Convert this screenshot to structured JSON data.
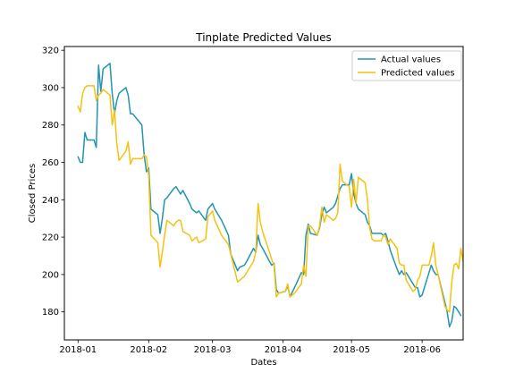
{
  "chart_data": {
    "type": "line",
    "title": "Tinplate Predicted Values",
    "xlabel": "Dates",
    "ylabel": "Closed Prices",
    "xlim": [
      "2017-12-26",
      "2018-06-19"
    ],
    "ylim": [
      165,
      322
    ],
    "x_ticks": [
      {
        "date": "2018-01-01",
        "label": "2018-01"
      },
      {
        "date": "2018-02-01",
        "label": "2018-02"
      },
      {
        "date": "2018-03-01",
        "label": "2018-03"
      },
      {
        "date": "2018-04-01",
        "label": "2018-04"
      },
      {
        "date": "2018-05-01",
        "label": "2018-05"
      },
      {
        "date": "2018-06-01",
        "label": "2018-06"
      }
    ],
    "y_ticks": [
      180,
      200,
      220,
      240,
      260,
      280,
      300,
      320
    ],
    "grid": false,
    "legend": "top-right",
    "colors": {
      "actual": "#2394b0",
      "predicted": "#f5c211",
      "axis": "#000000"
    },
    "series": [
      {
        "name": "Actual values",
        "key": "actual",
        "points": [
          [
            "2018-01-01",
            263
          ],
          [
            "2018-01-02",
            260
          ],
          [
            "2018-01-03",
            260
          ],
          [
            "2018-01-04",
            276
          ],
          [
            "2018-01-05",
            272
          ],
          [
            "2018-01-08",
            272
          ],
          [
            "2018-01-09",
            268
          ],
          [
            "2018-01-10",
            312
          ],
          [
            "2018-01-11",
            298
          ],
          [
            "2018-01-12",
            310
          ],
          [
            "2018-01-15",
            313
          ],
          [
            "2018-01-16",
            297
          ],
          [
            "2018-01-17",
            286
          ],
          [
            "2018-01-18",
            293
          ],
          [
            "2018-01-19",
            297
          ],
          [
            "2018-01-22",
            300
          ],
          [
            "2018-01-23",
            296
          ],
          [
            "2018-01-24",
            286
          ],
          [
            "2018-01-25",
            286
          ],
          [
            "2018-01-29",
            280
          ],
          [
            "2018-01-30",
            264
          ],
          [
            "2018-01-31",
            255
          ],
          [
            "2018-02-01",
            257
          ],
          [
            "2018-02-02",
            235
          ],
          [
            "2018-02-05",
            232
          ],
          [
            "2018-02-06",
            222
          ],
          [
            "2018-02-07",
            230
          ],
          [
            "2018-02-08",
            240
          ],
          [
            "2018-02-09",
            241
          ],
          [
            "2018-02-12",
            246
          ],
          [
            "2018-02-13",
            247
          ],
          [
            "2018-02-14",
            245
          ],
          [
            "2018-02-15",
            243
          ],
          [
            "2018-02-16",
            245
          ],
          [
            "2018-02-19",
            238
          ],
          [
            "2018-02-20",
            235
          ],
          [
            "2018-02-22",
            233
          ],
          [
            "2018-02-23",
            234
          ],
          [
            "2018-02-26",
            229
          ],
          [
            "2018-02-27",
            235
          ],
          [
            "2018-03-01",
            238
          ],
          [
            "2018-03-02",
            235
          ],
          [
            "2018-03-05",
            229
          ],
          [
            "2018-03-08",
            221
          ],
          [
            "2018-03-09",
            211
          ],
          [
            "2018-03-12",
            202
          ],
          [
            "2018-03-13",
            204
          ],
          [
            "2018-03-15",
            205
          ],
          [
            "2018-03-16",
            207
          ],
          [
            "2018-03-19",
            214
          ],
          [
            "2018-03-20",
            212
          ],
          [
            "2018-03-21",
            221
          ],
          [
            "2018-03-22",
            216
          ],
          [
            "2018-03-23",
            214
          ],
          [
            "2018-03-26",
            207
          ],
          [
            "2018-03-27",
            205
          ],
          [
            "2018-03-28",
            206
          ],
          [
            "2018-03-29",
            192
          ],
          [
            "2018-03-30",
            190
          ],
          [
            "2018-04-02",
            191
          ],
          [
            "2018-04-03",
            194
          ],
          [
            "2018-04-04",
            188
          ],
          [
            "2018-04-06",
            193
          ],
          [
            "2018-04-09",
            201
          ],
          [
            "2018-04-10",
            200
          ],
          [
            "2018-04-11",
            221
          ],
          [
            "2018-04-12",
            227
          ],
          [
            "2018-04-13",
            222
          ],
          [
            "2018-04-16",
            221
          ],
          [
            "2018-04-17",
            225
          ],
          [
            "2018-04-18",
            232
          ],
          [
            "2018-04-19",
            236
          ],
          [
            "2018-04-20",
            233
          ],
          [
            "2018-04-23",
            236
          ],
          [
            "2018-04-24",
            238
          ],
          [
            "2018-04-25",
            242
          ],
          [
            "2018-04-26",
            246
          ],
          [
            "2018-04-27",
            248
          ],
          [
            "2018-04-30",
            248
          ],
          [
            "2018-05-01",
            254
          ],
          [
            "2018-05-02",
            243
          ],
          [
            "2018-05-03",
            238
          ],
          [
            "2018-05-04",
            235
          ],
          [
            "2018-05-07",
            232
          ],
          [
            "2018-05-08",
            228
          ],
          [
            "2018-05-09",
            226
          ],
          [
            "2018-05-10",
            222
          ],
          [
            "2018-05-11",
            222
          ],
          [
            "2018-05-14",
            222
          ],
          [
            "2018-05-15",
            221
          ],
          [
            "2018-05-16",
            222
          ],
          [
            "2018-05-17",
            218
          ],
          [
            "2018-05-18",
            213
          ],
          [
            "2018-05-21",
            203
          ],
          [
            "2018-05-22",
            200
          ],
          [
            "2018-05-23",
            202
          ],
          [
            "2018-05-24",
            200
          ],
          [
            "2018-05-25",
            201
          ],
          [
            "2018-05-28",
            195
          ],
          [
            "2018-05-29",
            193
          ],
          [
            "2018-05-30",
            193
          ],
          [
            "2018-05-31",
            188
          ],
          [
            "2018-06-01",
            189
          ],
          [
            "2018-06-04",
            201
          ],
          [
            "2018-06-05",
            205
          ],
          [
            "2018-06-06",
            202
          ],
          [
            "2018-06-07",
            200
          ],
          [
            "2018-06-08",
            200
          ],
          [
            "2018-06-11",
            185
          ],
          [
            "2018-06-12",
            180
          ],
          [
            "2018-06-13",
            172
          ],
          [
            "2018-06-14",
            175
          ],
          [
            "2018-06-15",
            183
          ],
          [
            "2018-06-16",
            182
          ],
          [
            "2018-06-17",
            180
          ],
          [
            "2018-06-18",
            178
          ]
        ]
      },
      {
        "name": "Predicted values",
        "key": "predicted",
        "points": [
          [
            "2018-01-01",
            290
          ],
          [
            "2018-01-02",
            287
          ],
          [
            "2018-01-03",
            297
          ],
          [
            "2018-01-04",
            300
          ],
          [
            "2018-01-05",
            301
          ],
          [
            "2018-01-08",
            301
          ],
          [
            "2018-01-09",
            293
          ],
          [
            "2018-01-10",
            296
          ],
          [
            "2018-01-11",
            297
          ],
          [
            "2018-01-12",
            299
          ],
          [
            "2018-01-15",
            296
          ],
          [
            "2018-01-16",
            280
          ],
          [
            "2018-01-17",
            288
          ],
          [
            "2018-01-18",
            270
          ],
          [
            "2018-01-19",
            261
          ],
          [
            "2018-01-22",
            266
          ],
          [
            "2018-01-23",
            271
          ],
          [
            "2018-01-24",
            259
          ],
          [
            "2018-01-25",
            262
          ],
          [
            "2018-01-29",
            262
          ],
          [
            "2018-01-30",
            264
          ],
          [
            "2018-01-31",
            263
          ],
          [
            "2018-02-01",
            253
          ],
          [
            "2018-02-02",
            221
          ],
          [
            "2018-02-05",
            217
          ],
          [
            "2018-02-06",
            204
          ],
          [
            "2018-02-07",
            212
          ],
          [
            "2018-02-08",
            221
          ],
          [
            "2018-02-09",
            229
          ],
          [
            "2018-02-12",
            226
          ],
          [
            "2018-02-13",
            228
          ],
          [
            "2018-02-14",
            229
          ],
          [
            "2018-02-15",
            229
          ],
          [
            "2018-02-16",
            223
          ],
          [
            "2018-02-19",
            221
          ],
          [
            "2018-02-20",
            218
          ],
          [
            "2018-02-22",
            220
          ],
          [
            "2018-02-23",
            217
          ],
          [
            "2018-02-26",
            219
          ],
          [
            "2018-02-27",
            231
          ],
          [
            "2018-03-01",
            234
          ],
          [
            "2018-03-02",
            229
          ],
          [
            "2018-03-05",
            221
          ],
          [
            "2018-03-08",
            216
          ],
          [
            "2018-03-09",
            211
          ],
          [
            "2018-03-12",
            196
          ],
          [
            "2018-03-13",
            197
          ],
          [
            "2018-03-15",
            199
          ],
          [
            "2018-03-16",
            201
          ],
          [
            "2018-03-19",
            207
          ],
          [
            "2018-03-20",
            212
          ],
          [
            "2018-03-21",
            238
          ],
          [
            "2018-03-22",
            228
          ],
          [
            "2018-03-23",
            223
          ],
          [
            "2018-03-26",
            212
          ],
          [
            "2018-03-27",
            208
          ],
          [
            "2018-03-28",
            205
          ],
          [
            "2018-03-29",
            188
          ],
          [
            "2018-03-30",
            190
          ],
          [
            "2018-04-02",
            191
          ],
          [
            "2018-04-03",
            195
          ],
          [
            "2018-04-04",
            188
          ],
          [
            "2018-04-06",
            190
          ],
          [
            "2018-04-09",
            195
          ],
          [
            "2018-04-10",
            205
          ],
          [
            "2018-04-11",
            199
          ],
          [
            "2018-04-12",
            226
          ],
          [
            "2018-04-13",
            226
          ],
          [
            "2018-04-16",
            221
          ],
          [
            "2018-04-17",
            226
          ],
          [
            "2018-04-18",
            236
          ],
          [
            "2018-04-19",
            228
          ],
          [
            "2018-04-20",
            232
          ],
          [
            "2018-04-23",
            229
          ],
          [
            "2018-04-24",
            230
          ],
          [
            "2018-04-25",
            233
          ],
          [
            "2018-04-26",
            259
          ],
          [
            "2018-04-27",
            250
          ],
          [
            "2018-04-30",
            247
          ],
          [
            "2018-05-01",
            236
          ],
          [
            "2018-05-02",
            251
          ],
          [
            "2018-05-03",
            238
          ],
          [
            "2018-05-04",
            252
          ],
          [
            "2018-05-07",
            249
          ],
          [
            "2018-05-08",
            240
          ],
          [
            "2018-05-09",
            225
          ],
          [
            "2018-05-10",
            219
          ],
          [
            "2018-05-11",
            218
          ],
          [
            "2018-05-14",
            218
          ],
          [
            "2018-05-15",
            221
          ],
          [
            "2018-05-16",
            220
          ],
          [
            "2018-05-17",
            216
          ],
          [
            "2018-05-18",
            219
          ],
          [
            "2018-05-21",
            214
          ],
          [
            "2018-05-22",
            206
          ],
          [
            "2018-05-23",
            205
          ],
          [
            "2018-05-24",
            205
          ],
          [
            "2018-05-25",
            197
          ],
          [
            "2018-05-28",
            191
          ],
          [
            "2018-05-29",
            192
          ],
          [
            "2018-05-30",
            197
          ],
          [
            "2018-05-31",
            199
          ],
          [
            "2018-06-01",
            205
          ],
          [
            "2018-06-04",
            205
          ],
          [
            "2018-06-05",
            210
          ],
          [
            "2018-06-06",
            217
          ],
          [
            "2018-06-07",
            205
          ],
          [
            "2018-06-08",
            200
          ],
          [
            "2018-06-11",
            183
          ],
          [
            "2018-06-12",
            181
          ],
          [
            "2018-06-13",
            180
          ],
          [
            "2018-06-14",
            196
          ],
          [
            "2018-06-15",
            205
          ],
          [
            "2018-06-16",
            206
          ],
          [
            "2018-06-17",
            203
          ],
          [
            "2018-06-18",
            214
          ],
          [
            "2018-06-19",
            207
          ]
        ]
      }
    ]
  }
}
